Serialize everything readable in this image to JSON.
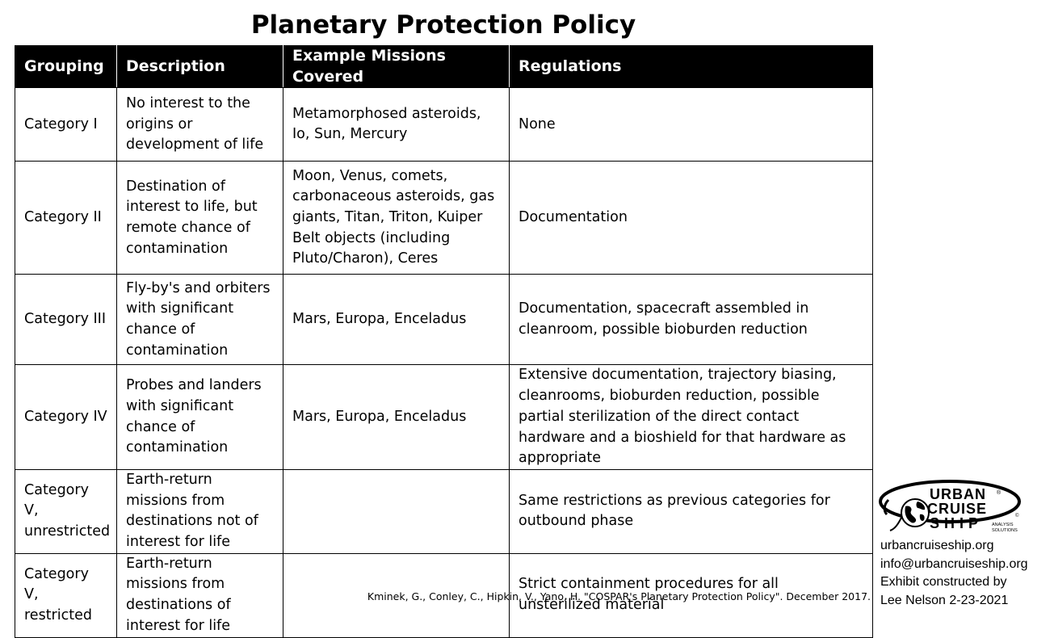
{
  "title": "Planetary Protection Policy",
  "table": {
    "headers": [
      "Grouping",
      "Description",
      "Example Missions Covered",
      "Regulations"
    ],
    "rows": [
      {
        "grouping": "Category I",
        "description": "No interest to the origins or development of life",
        "examples": "Metamorphosed asteroids, Io, Sun, Mercury",
        "regulations": "None"
      },
      {
        "grouping": "Category II",
        "description": "Destination of interest to life, but remote chance of contamination",
        "examples": "Moon, Venus, comets, carbonaceous asteroids, gas giants, Titan, Triton, Kuiper Belt objects (including Pluto/Charon), Ceres",
        "regulations": "Documentation"
      },
      {
        "grouping": "Category III",
        "description": "Fly-by's and orbiters with significant chance of contamination",
        "examples": "Mars, Europa, Enceladus",
        "regulations": "Documentation, spacecraft assembled in cleanroom, possible bioburden reduction"
      },
      {
        "grouping": "Category IV",
        "description": "Probes and landers with significant chance of contamination",
        "examples": "Mars, Europa, Enceladus",
        "regulations": "Extensive documentation, trajectory biasing, cleanrooms, bioburden reduction, possible partial sterilization of the direct contact hardware and a bioshield for that hardware as appropriate"
      },
      {
        "grouping": "Category V, unrestricted",
        "description": "Earth-return missions from destinations not of interest for life",
        "examples": "",
        "regulations": "Same restrictions as previous categories for outbound phase"
      },
      {
        "grouping": "Category V, restricted",
        "description": "Earth-return missions from destinations of interest for life",
        "examples": "",
        "regulations": "Strict containment procedures for all unsterilized material"
      }
    ]
  },
  "citation": "Kminek, G., Conley, C., Hipkin, V., Yano, H. \"COSPAR's Planetary Protection Policy\". December 2017.",
  "logo": {
    "line1": "URBAN",
    "line2": "CRUISE",
    "line3": "SHIP",
    "sub1": "ANALYSIS",
    "sub2": "SOLUTIONS",
    "registered": "®",
    "copyright": "©"
  },
  "contact": {
    "website": "urbancruiseship.org",
    "email": "info@urbancruiseship.org",
    "credit_line1": "Exhibit constructed by",
    "credit_line2": "Lee Nelson 2-23-2021"
  }
}
